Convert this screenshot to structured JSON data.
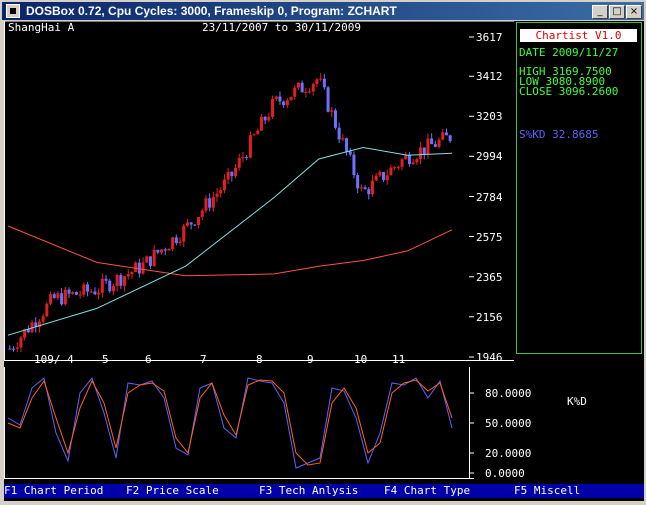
{
  "window": {
    "title": "DOSBox 0.72, Cpu Cycles:     3000, Frameskip  0, Program:  ZCHART",
    "minimize_glyph": "_",
    "maximize_glyph": "□",
    "close_glyph": "×"
  },
  "chart_header": {
    "symbol": "ShangHai A",
    "date_range": "23/11/2007  to 30/11/2009"
  },
  "info_panel": {
    "app_name": "Chartist V1.0",
    "date_line": "DATE 2009/11/27",
    "high_line": "HIGH  3169.7500",
    "low_line": "LOW   3080.8900",
    "close_line": "CLOSE 3096.2600",
    "skd_line": "S%KD   32.8685"
  },
  "colors": {
    "screen_bg": "#000000",
    "candle_up": "#e02020",
    "candle_down": "#7070ff",
    "ma_short": "#80e0e0",
    "ma_long": "#ff5040",
    "k_line": "#6060ff",
    "d_line": "#ff6020",
    "panel_border": "#40c040",
    "status_bg": "#0000a8"
  },
  "status_bar": {
    "f1": "F1 Chart Period",
    "f2": "F2 Price Scale",
    "f3": "F3 Tech Anlysis",
    "f4": "F4 Chart Type",
    "f5": "F5 Miscell"
  },
  "chart_data": [
    {
      "type": "candlestick",
      "title": "ShangHai A",
      "x_tick_labels": [
        "109/ 4",
        "5",
        "6",
        "7",
        "8",
        "9",
        "10",
        "11"
      ],
      "y_tick_labels": [
        "3617",
        "3412",
        "3203",
        "2994",
        "2784",
        "2575",
        "2365",
        "2156",
        "1946"
      ],
      "ylim": [
        1946,
        3617
      ],
      "price_series": [
        {
          "date": "2009-01",
          "close": 1990
        },
        {
          "date": "2009-02",
          "close": 2250
        },
        {
          "date": "2009-03",
          "close": 2300
        },
        {
          "date": "2009-04",
          "close": 2420
        },
        {
          "date": "2009-05",
          "close": 2620
        },
        {
          "date": "2009-06",
          "close": 2880
        },
        {
          "date": "2009-07",
          "close": 3270
        },
        {
          "date": "2009-08",
          "close": 3400
        },
        {
          "date": "2009-09",
          "close": 2800
        },
        {
          "date": "2009-10",
          "close": 2990
        },
        {
          "date": "2009-11",
          "close": 3096
        }
      ],
      "moving_averages": [
        {
          "date": "2009-01",
          "ma_short": 2060,
          "ma_long": 2630
        },
        {
          "date": "2009-03",
          "ma_short": 2200,
          "ma_long": 2440
        },
        {
          "date": "2009-05",
          "ma_short": 2420,
          "ma_long": 2370
        },
        {
          "date": "2009-07",
          "ma_short": 2780,
          "ma_long": 2380
        },
        {
          "date": "2009-08",
          "ma_short": 2980,
          "ma_long": 2420
        },
        {
          "date": "2009-09",
          "ma_short": 3040,
          "ma_long": 2450
        },
        {
          "date": "2009-10",
          "ma_short": 3000,
          "ma_long": 2500
        },
        {
          "date": "2009-11",
          "ma_short": 3010,
          "ma_long": 2610
        }
      ]
    },
    {
      "type": "line",
      "title": "K%D",
      "y_tick_labels": [
        "80.0000",
        "50.0000",
        "20.0000",
        "0.0000"
      ],
      "ylim": [
        0,
        100
      ],
      "series": [
        {
          "name": "K",
          "values": [
            55,
            48,
            85,
            95,
            40,
            12,
            80,
            95,
            60,
            15,
            90,
            88,
            92,
            75,
            25,
            18,
            85,
            90,
            45,
            35,
            95,
            92,
            90,
            70,
            5,
            10,
            15,
            85,
            82,
            55,
            10,
            40,
            90,
            88,
            95,
            75,
            92,
            45
          ]
        },
        {
          "name": "D",
          "values": [
            50,
            45,
            75,
            92,
            55,
            20,
            65,
            92,
            70,
            25,
            80,
            88,
            90,
            82,
            35,
            20,
            75,
            90,
            58,
            38,
            88,
            93,
            92,
            80,
            20,
            8,
            10,
            70,
            85,
            65,
            20,
            30,
            80,
            90,
            93,
            82,
            90,
            55
          ]
        }
      ]
    }
  ]
}
